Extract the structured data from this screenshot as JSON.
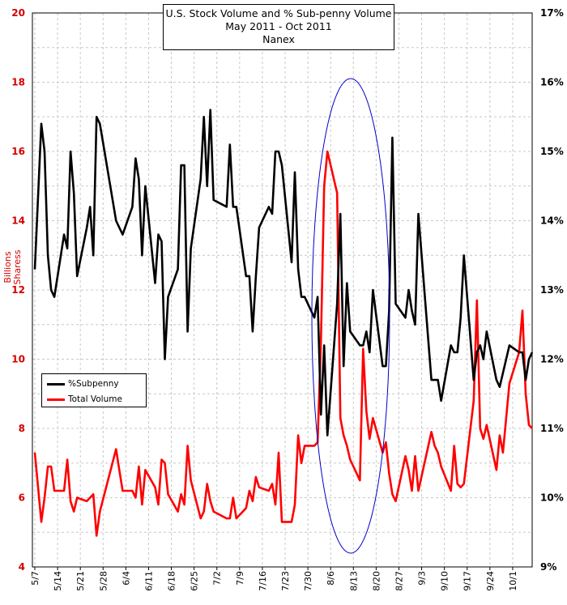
{
  "chart_data": {
    "type": "line",
    "title": "U.S. Stock Volume and % Sub-penny Volume",
    "subtitle": "May 2011 - Oct 2011",
    "source": "Nanex",
    "ylabel_left_line1": "Billions",
    "ylabel_left_line2": "Sharess",
    "ylim_left": [
      4,
      20
    ],
    "yticks_left": [
      "4",
      "6",
      "8",
      "10",
      "12",
      "14",
      "16",
      "18",
      "20"
    ],
    "ylim_right": [
      0.09,
      0.17
    ],
    "yticks_right": [
      "9%",
      "10%",
      "11%",
      "12%",
      "13%",
      "14%",
      "15%",
      "16%",
      "17%"
    ],
    "x_range": [
      "5/7",
      "10/7"
    ],
    "x_tick_labels": [
      "5/7",
      "5/14",
      "5/21",
      "5/28",
      "6/4",
      "6/11",
      "6/18",
      "6/25",
      "7/2",
      "7/9",
      "7/16",
      "7/23",
      "7/30",
      "8/6",
      "8/13",
      "8/20",
      "8/27",
      "9/3",
      "9/10",
      "9/17",
      "9/24",
      "10/1"
    ],
    "grid": true,
    "legend_position": "left",
    "colors": {
      "subpenny": "#000000",
      "volume": "#ff0000",
      "ellipse": "#0000cc",
      "left_axis": "#d40000"
    },
    "series": [
      {
        "name": "%Subpenny",
        "axis": "right",
        "x": [
          "5/7",
          "5/9",
          "5/10",
          "5/11",
          "5/12",
          "5/13",
          "5/16",
          "5/17",
          "5/18",
          "5/19",
          "5/20",
          "5/23",
          "5/24",
          "5/25",
          "5/26",
          "5/27",
          "6/1",
          "6/2",
          "6/3",
          "6/6",
          "6/7",
          "6/8",
          "6/9",
          "6/10",
          "6/13",
          "6/14",
          "6/15",
          "6/16",
          "6/17",
          "6/20",
          "6/21",
          "6/22",
          "6/23",
          "6/24",
          "6/27",
          "6/28",
          "6/29",
          "6/30",
          "7/1",
          "7/5",
          "7/6",
          "7/7",
          "7/8",
          "7/11",
          "7/12",
          "7/13",
          "7/14",
          "7/15",
          "7/18",
          "7/19",
          "7/20",
          "7/21",
          "7/22",
          "7/25",
          "7/26",
          "7/27",
          "7/28",
          "7/29",
          "8/1",
          "8/2",
          "8/3",
          "8/4",
          "8/5",
          "8/8",
          "8/9",
          "8/10",
          "8/11",
          "8/12",
          "8/15",
          "8/16",
          "8/17",
          "8/18",
          "8/19",
          "8/22",
          "8/23",
          "8/24",
          "8/25",
          "8/26",
          "8/29",
          "8/30",
          "8/31",
          "9/1",
          "9/2",
          "9/6",
          "9/7",
          "9/8",
          "9/9",
          "9/12",
          "9/13",
          "9/14",
          "9/15",
          "9/16",
          "9/19",
          "9/20",
          "9/21",
          "9/22",
          "9/23",
          "9/26",
          "9/27",
          "9/28",
          "9/29",
          "9/30",
          "10/3",
          "10/4",
          "10/5",
          "10/6",
          "10/7"
        ],
        "values": [
          0.133,
          0.154,
          0.15,
          0.135,
          0.13,
          0.129,
          0.138,
          0.136,
          0.15,
          0.144,
          0.132,
          0.139,
          0.142,
          0.135,
          0.155,
          0.154,
          0.14,
          0.139,
          0.138,
          0.142,
          0.149,
          0.146,
          0.135,
          0.145,
          0.131,
          0.138,
          0.137,
          0.12,
          0.129,
          0.133,
          0.148,
          0.148,
          0.124,
          0.136,
          0.146,
          0.155,
          0.145,
          0.156,
          0.143,
          0.142,
          0.151,
          0.142,
          0.142,
          0.132,
          0.132,
          0.124,
          0.132,
          0.139,
          0.142,
          0.141,
          0.15,
          0.15,
          0.148,
          0.134,
          0.147,
          0.133,
          0.129,
          0.129,
          0.126,
          0.129,
          0.112,
          0.122,
          0.109,
          0.128,
          0.141,
          0.119,
          0.131,
          0.124,
          0.122,
          0.122,
          0.124,
          0.121,
          0.13,
          0.119,
          0.119,
          0.127,
          0.152,
          0.128,
          0.126,
          0.13,
          0.127,
          0.125,
          0.141,
          0.117,
          0.117,
          0.117,
          0.114,
          0.122,
          0.121,
          0.121,
          0.126,
          0.135,
          0.117,
          0.121,
          0.122,
          0.12,
          0.124,
          0.117,
          0.116,
          0.118,
          0.12,
          0.122,
          0.121,
          0.121,
          0.117,
          0.12,
          0.121
        ]
      },
      {
        "name": "Total Volume",
        "axis": "left",
        "x": [
          "5/7",
          "5/9",
          "5/10",
          "5/11",
          "5/12",
          "5/13",
          "5/16",
          "5/17",
          "5/18",
          "5/19",
          "5/20",
          "5/23",
          "5/24",
          "5/25",
          "5/26",
          "5/27",
          "6/1",
          "6/2",
          "6/3",
          "6/6",
          "6/7",
          "6/8",
          "6/9",
          "6/10",
          "6/13",
          "6/14",
          "6/15",
          "6/16",
          "6/17",
          "6/20",
          "6/21",
          "6/22",
          "6/23",
          "6/24",
          "6/27",
          "6/28",
          "6/29",
          "6/30",
          "7/1",
          "7/5",
          "7/6",
          "7/7",
          "7/8",
          "7/11",
          "7/12",
          "7/13",
          "7/14",
          "7/15",
          "7/18",
          "7/19",
          "7/20",
          "7/21",
          "7/22",
          "7/25",
          "7/26",
          "7/27",
          "7/28",
          "7/29",
          "8/1",
          "8/2",
          "8/3",
          "8/4",
          "8/5",
          "8/8",
          "8/9",
          "8/10",
          "8/11",
          "8/12",
          "8/15",
          "8/16",
          "8/17",
          "8/18",
          "8/19",
          "8/22",
          "8/23",
          "8/24",
          "8/25",
          "8/26",
          "8/29",
          "8/30",
          "8/31",
          "9/1",
          "9/2",
          "9/6",
          "9/7",
          "9/8",
          "9/9",
          "9/12",
          "9/13",
          "9/14",
          "9/15",
          "9/16",
          "9/19",
          "9/20",
          "9/21",
          "9/22",
          "9/23",
          "9/26",
          "9/27",
          "9/28",
          "9/29",
          "9/30",
          "10/3",
          "10/4",
          "10/5",
          "10/6",
          "10/7"
        ],
        "values": [
          7.3,
          5.3,
          6.0,
          6.9,
          6.9,
          6.2,
          6.2,
          7.1,
          5.9,
          5.6,
          6.0,
          5.9,
          6.0,
          6.1,
          4.9,
          5.6,
          7.4,
          6.8,
          6.2,
          6.2,
          6.0,
          6.9,
          5.8,
          6.8,
          6.3,
          5.8,
          7.1,
          7.0,
          6.1,
          5.6,
          6.1,
          5.8,
          7.5,
          6.5,
          5.4,
          5.6,
          6.4,
          5.9,
          5.6,
          5.4,
          5.4,
          6.0,
          5.4,
          5.7,
          6.2,
          5.9,
          6.6,
          6.3,
          6.2,
          6.4,
          5.8,
          7.3,
          5.3,
          5.3,
          5.8,
          7.8,
          7.0,
          7.5,
          7.5,
          7.6,
          10.5,
          15.0,
          16.0,
          14.8,
          8.3,
          7.8,
          7.5,
          7.1,
          6.5,
          10.3,
          8.5,
          7.7,
          8.3,
          7.3,
          7.6,
          6.7,
          6.1,
          5.9,
          7.2,
          6.8,
          6.2,
          7.2,
          6.2,
          7.9,
          7.5,
          7.3,
          6.9,
          6.2,
          7.5,
          6.4,
          6.3,
          6.4,
          8.8,
          11.7,
          8.0,
          7.7,
          8.1,
          6.8,
          7.8,
          7.3,
          8.3,
          9.3,
          10.2,
          11.4,
          9.0,
          8.1,
          8.0
        ]
      }
    ]
  },
  "legend": {
    "subpenny_label": "%Subpenny",
    "volume_label": "Total Volume"
  }
}
